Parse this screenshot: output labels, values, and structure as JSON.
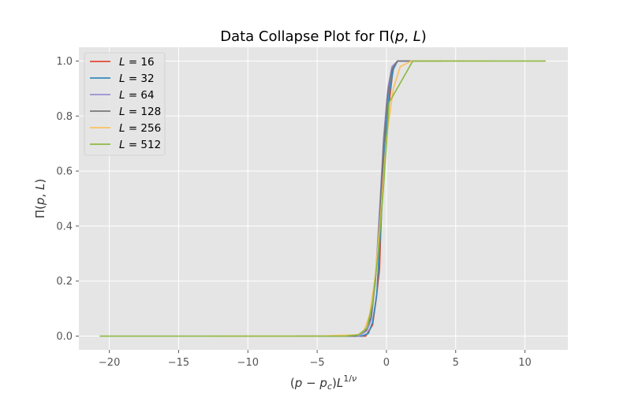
{
  "chart_data": {
    "type": "line",
    "title": "Data Collapse Plot for Π(p, L)",
    "xlabel": "(p − p_c)L^{1/ν}",
    "ylabel": "Π(p, L)",
    "xlim": [
      -22.2,
      13.1
    ],
    "ylim": [
      -0.05,
      1.05
    ],
    "xticks": [
      -20,
      -15,
      -10,
      -5,
      0,
      5,
      10
    ],
    "xtick_labels": [
      "−20",
      "−15",
      "−10",
      "−5",
      "0",
      "5",
      "10"
    ],
    "yticks": [
      0.0,
      0.2,
      0.4,
      0.6,
      0.8,
      1.0
    ],
    "ytick_labels": [
      "0.0",
      "0.2",
      "0.4",
      "0.6",
      "0.8",
      "1.0"
    ],
    "grid": true,
    "legend_position": "top-left",
    "series": [
      {
        "name": "L = 16",
        "L": "16",
        "color": "#E24A33",
        "x": [
          -2.6,
          -1.5,
          -1.0,
          -0.75,
          -0.5,
          -0.3,
          -0.05,
          0.2,
          0.5,
          0.8,
          1.1,
          1.5
        ],
        "y": [
          0.0,
          0.0,
          0.04,
          0.13,
          0.24,
          0.55,
          0.74,
          0.85,
          0.98,
          1.0,
          1.0,
          1.0
        ]
      },
      {
        "name": "L = 32",
        "L": "32",
        "color": "#348ABD",
        "x": [
          -3.0,
          -1.8,
          -1.3,
          -1.0,
          -0.7,
          -0.4,
          -0.1,
          0.2,
          0.5,
          0.8,
          1.3,
          2.0
        ],
        "y": [
          0.0,
          0.0,
          0.01,
          0.05,
          0.15,
          0.4,
          0.7,
          0.88,
          0.97,
          1.0,
          1.0,
          1.0
        ]
      },
      {
        "name": "L = 64",
        "L": "64",
        "color": "#988ED5",
        "x": [
          -4.5,
          -2.0,
          -1.4,
          -1.1,
          -0.8,
          -0.5,
          -0.2,
          0.1,
          0.4,
          0.8,
          1.5,
          3.0
        ],
        "y": [
          0.0,
          0.0,
          0.02,
          0.06,
          0.2,
          0.45,
          0.72,
          0.9,
          0.98,
          1.0,
          1.0,
          1.0
        ]
      },
      {
        "name": "L = 128",
        "L": "128",
        "color": "#777777",
        "x": [
          -6.5,
          -2.2,
          -1.5,
          -1.1,
          -0.8,
          -0.5,
          -0.2,
          0.1,
          0.4,
          0.8,
          2.0,
          4.0
        ],
        "y": [
          0.0,
          0.0,
          0.02,
          0.07,
          0.2,
          0.42,
          0.7,
          0.88,
          0.97,
          1.0,
          1.0,
          1.0
        ]
      },
      {
        "name": "L = 256",
        "L": "256",
        "color": "#FBC15E",
        "x": [
          -12.5,
          -5.0,
          -2.0,
          -1.6,
          -1.2,
          -0.8,
          -0.4,
          0.0,
          0.5,
          1.0,
          1.8,
          4.0,
          7.5
        ],
        "y": [
          0.0,
          0.0,
          0.005,
          0.02,
          0.08,
          0.22,
          0.45,
          0.72,
          0.9,
          0.98,
          1.0,
          1.0,
          1.0
        ]
      },
      {
        "name": "L = 512",
        "L": "512",
        "color": "#8EBA42",
        "x": [
          -20.7,
          -10.0,
          -3.0,
          -2.0,
          -1.4,
          -1.0,
          -0.6,
          -0.2,
          0.2,
          1.0,
          1.9,
          5.0,
          11.5
        ],
        "y": [
          0.0,
          0.0,
          0.0,
          0.005,
          0.03,
          0.12,
          0.3,
          0.55,
          0.85,
          0.92,
          1.0,
          1.0,
          1.0
        ]
      }
    ]
  }
}
